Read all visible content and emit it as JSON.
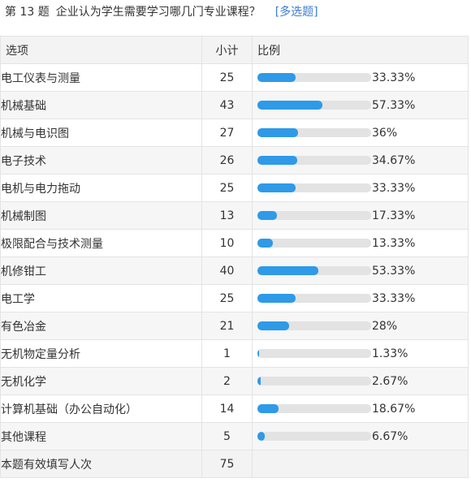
{
  "question": {
    "number": "第 13 题",
    "text": "企业认为学生需要学习哪几门专业课程？",
    "type": "[多选题]"
  },
  "table": {
    "headers": {
      "option": "选项",
      "count": "小计",
      "ratio": "比例"
    },
    "rows": [
      {
        "option": "电工仪表与测量",
        "count": "25",
        "percent": "33.33%",
        "fraction": 0.3333
      },
      {
        "option": "机械基础",
        "count": "43",
        "percent": "57.33%",
        "fraction": 0.5733
      },
      {
        "option": "机械与电识图",
        "count": "27",
        "percent": "36%",
        "fraction": 0.36
      },
      {
        "option": "电子技术",
        "count": "26",
        "percent": "34.67%",
        "fraction": 0.3467
      },
      {
        "option": "电机与电力拖动",
        "count": "25",
        "percent": "33.33%",
        "fraction": 0.3333
      },
      {
        "option": "机械制图",
        "count": "13",
        "percent": "17.33%",
        "fraction": 0.1733
      },
      {
        "option": "极限配合与技术测量",
        "count": "10",
        "percent": "13.33%",
        "fraction": 0.1333
      },
      {
        "option": "机修钳工",
        "count": "40",
        "percent": "53.33%",
        "fraction": 0.5333
      },
      {
        "option": "电工学",
        "count": "25",
        "percent": "33.33%",
        "fraction": 0.3333
      },
      {
        "option": "有色冶金",
        "count": "21",
        "percent": "28%",
        "fraction": 0.28
      },
      {
        "option": "无机物定量分析",
        "count": "1",
        "percent": "1.33%",
        "fraction": 0.0133
      },
      {
        "option": "无机化学",
        "count": "2",
        "percent": "2.67%",
        "fraction": 0.0267
      },
      {
        "option": "计算机基础（办公自动化）",
        "count": "14",
        "percent": "18.67%",
        "fraction": 0.1867
      },
      {
        "option": "其他课程",
        "count": "5",
        "percent": "6.67%",
        "fraction": 0.0667
      }
    ],
    "summary": {
      "label": "本题有效填写人次",
      "count": "75"
    }
  },
  "colors": {
    "bar_fill": "#2e9ae8",
    "bar_track": "#e3e3e3",
    "link": "#3d7ccf"
  }
}
